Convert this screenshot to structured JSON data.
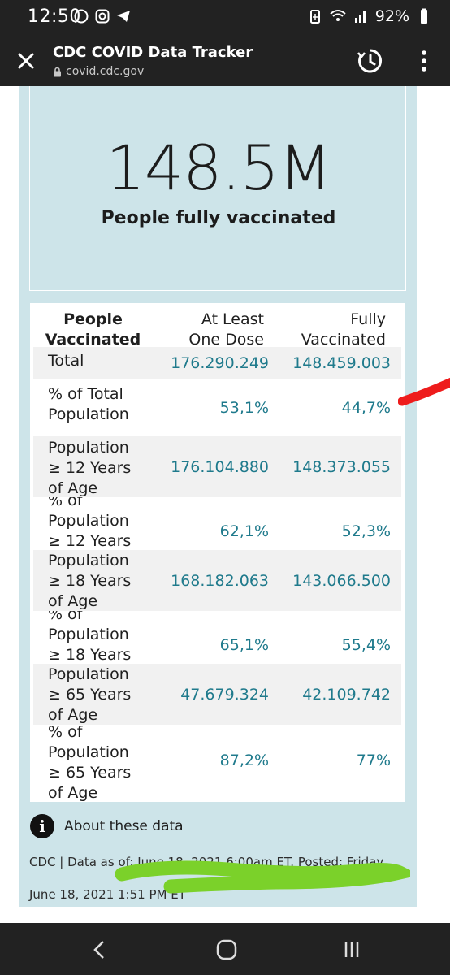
{
  "status_bar": {
    "time": "12:50",
    "battery": "92%"
  },
  "toolbar": {
    "title": "CDC COVID Data Tracker",
    "url": "covid.cdc.gov"
  },
  "hero": {
    "number": "148.5M",
    "label": "People fully vaccinated"
  },
  "table": {
    "headers": {
      "col1_line1": "People",
      "col1_line2": "Vaccinated",
      "col2_line1": "At Least",
      "col2_line2": "One Dose",
      "col3_line1": "Fully",
      "col3_line2": "Vaccinated"
    },
    "rows": [
      {
        "label_lines": [
          "Total"
        ],
        "dose": "176.290.249",
        "full": "148.459.003"
      },
      {
        "label_lines": [
          "% of Total",
          "Population"
        ],
        "dose": "53,1%",
        "full": "44,7%"
      },
      {
        "label_lines": [
          "Population",
          "≥ 12 Years",
          "of Age"
        ],
        "dose": "176.104.880",
        "full": "148.373.055"
      },
      {
        "label_lines": [
          "% of",
          "Population",
          "≥ 12 Years"
        ],
        "dose": "62,1%",
        "full": "52,3%"
      },
      {
        "label_lines": [
          "Population",
          "≥ 18 Years",
          "of Age"
        ],
        "dose": "168.182.063",
        "full": "143.066.500"
      },
      {
        "label_lines": [
          "% of",
          "Population",
          "≥ 18 Years"
        ],
        "dose": "65,1%",
        "full": "55,4%"
      },
      {
        "label_lines": [
          "Population",
          "≥ 65 Years",
          "of Age"
        ],
        "dose": "47.679.324",
        "full": "42.109.742"
      },
      {
        "label_lines": [
          "% of",
          "Population",
          "≥ 65 Years",
          "of Age"
        ],
        "dose": "87,2%",
        "full": "77%"
      }
    ]
  },
  "about": {
    "label": "About these data"
  },
  "footer": {
    "line1": "CDC | Data as of: June 18, 2021 6:00am ET. Posted: Friday,",
    "line2": "June 18, 2021 1:51 PM ET"
  },
  "colors": {
    "panel": "#cde4e9",
    "value_teal": "#1f7a8c",
    "bar_dark": "#222222",
    "red_mark": "#ee1c1c",
    "green_mark": "#7bd12a"
  },
  "icons": [
    "whatsapp-icon",
    "instagram-icon",
    "telegram-icon",
    "wifi-icon",
    "signal-icon",
    "battery-icon",
    "close-icon",
    "lock-icon",
    "history-icon",
    "more-vert-icon",
    "info-icon",
    "back-icon",
    "home-icon",
    "recents-icon"
  ]
}
